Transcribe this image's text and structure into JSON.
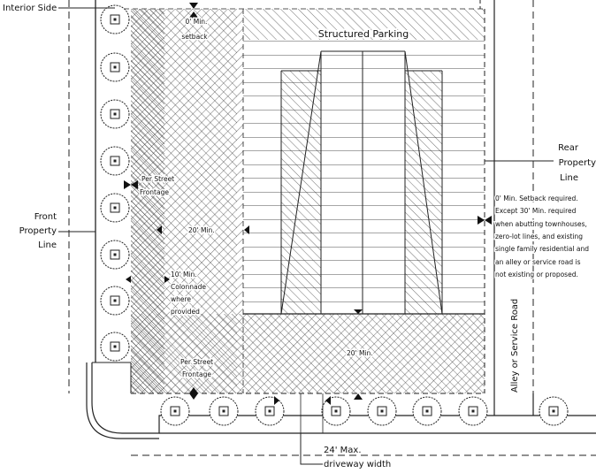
{
  "labels": {
    "interior_side": "Interior Side",
    "front_property_1": "Front",
    "front_property_2": "Property",
    "front_property_3": "Line",
    "rear_property_1": "Rear",
    "rear_property_2": "Property",
    "rear_property_3": "Line",
    "structured_parking": "Structured Parking",
    "setback_top_1": "0' Min.",
    "setback_top_2": "setback",
    "street_frontage_left_1": "Per Street",
    "street_frontage_left_2": "Frontage",
    "min20_left": "20' Min.",
    "colonnade_1": "10' Min.",
    "colonnade_2": "Colonnade",
    "colonnade_3": "where",
    "colonnade_4": "provided",
    "street_frontage_bottom_1": "Per Street",
    "street_frontage_bottom_2": "Frontage",
    "min20_bottom": "20' Min.",
    "rear_note_1": "0' Min. Setback required.",
    "rear_note_2": "Except 30' Min. required",
    "rear_note_3": "when abutting townhouses,",
    "rear_note_4": "zero-lot lines, and existing",
    "rear_note_5": "single family residential and",
    "rear_note_6": "an alley or service road is",
    "rear_note_7": "not existing or proposed.",
    "alley": "Alley or Service Road",
    "driveway_1": "24' Max.",
    "driveway_2": "driveway width"
  },
  "tree_symbol": "tree-icon"
}
